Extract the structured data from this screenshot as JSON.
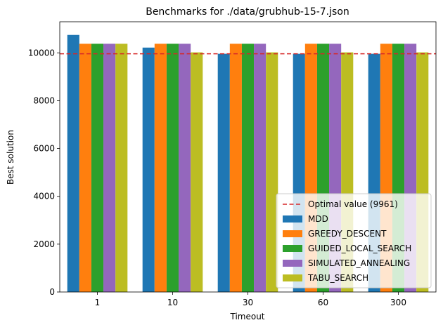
{
  "chart_data": {
    "type": "bar",
    "title": "Benchmarks for ./data/grubhub-15-7.json",
    "xlabel": "Timeout",
    "ylabel": "Best solution",
    "categories": [
      "1",
      "10",
      "30",
      "60",
      "300"
    ],
    "ylim": [
      0,
      11300
    ],
    "yticks": [
      0,
      2000,
      4000,
      6000,
      8000,
      10000
    ],
    "grid": false,
    "legend_position": "lower-right",
    "optimal": {
      "label": "Optimal value (9961)",
      "value": 9961,
      "color": "#d62728"
    },
    "series": [
      {
        "name": "MDD",
        "color": "#1f77b4",
        "values": [
          10750,
          10220,
          9961,
          9961,
          9961
        ]
      },
      {
        "name": "GREEDY_DESCENT",
        "color": "#ff7f0e",
        "values": [
          10380,
          10380,
          10380,
          10380,
          10380
        ]
      },
      {
        "name": "GUIDED_LOCAL_SEARCH",
        "color": "#2ca02c",
        "values": [
          10380,
          10380,
          10380,
          10380,
          10380
        ]
      },
      {
        "name": "SIMULATED_ANNEALING",
        "color": "#9467bd",
        "values": [
          10380,
          10380,
          10380,
          10380,
          10380
        ]
      },
      {
        "name": "TABU_SEARCH",
        "color": "#bcbd22",
        "values": [
          10380,
          10020,
          10020,
          10020,
          10020
        ]
      }
    ]
  }
}
